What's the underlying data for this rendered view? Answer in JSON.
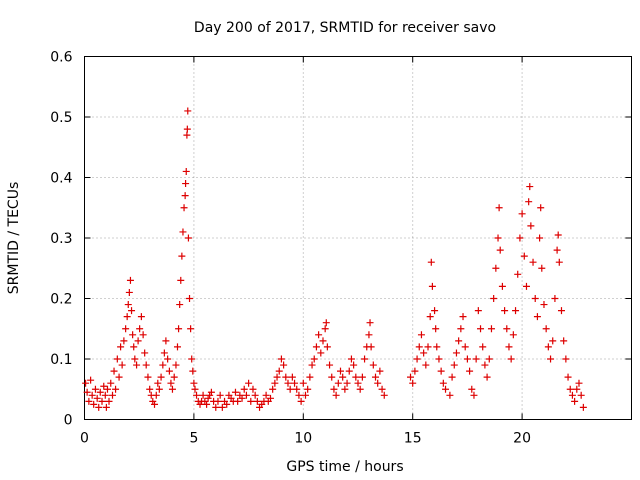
{
  "chart_data": {
    "type": "scatter",
    "title": "Day 200 of 2017, SRMTID for receiver savo",
    "xlabel": "GPS time / hours",
    "ylabel": "SRMTID / TECUs",
    "xlim": [
      0,
      25
    ],
    "ylim": [
      0,
      0.6
    ],
    "xticks": [
      0,
      5,
      10,
      15,
      20
    ],
    "xtick_labels": [
      "0",
      "5",
      "10",
      "15",
      "20"
    ],
    "yticks": [
      0,
      0.1,
      0.2,
      0.3,
      0.4,
      0.5,
      0.6
    ],
    "ytick_labels": [
      "0",
      "0.1",
      "0.2",
      "0.3",
      "0.4",
      "0.5",
      "0.6"
    ],
    "grid": true,
    "marker": "+",
    "color": "#dd0000",
    "series": [
      {
        "name": "SRMTID",
        "points": [
          [
            0.05,
            0.06
          ],
          [
            0.12,
            0.045
          ],
          [
            0.2,
            0.03
          ],
          [
            0.28,
            0.065
          ],
          [
            0.35,
            0.04
          ],
          [
            0.42,
            0.025
          ],
          [
            0.5,
            0.05
          ],
          [
            0.58,
            0.035
          ],
          [
            0.65,
            0.02
          ],
          [
            0.72,
            0.045
          ],
          [
            0.8,
            0.03
          ],
          [
            0.88,
            0.055
          ],
          [
            0.95,
            0.04
          ],
          [
            1.0,
            0.02
          ],
          [
            1.05,
            0.05
          ],
          [
            1.12,
            0.03
          ],
          [
            1.2,
            0.06
          ],
          [
            1.28,
            0.04
          ],
          [
            1.35,
            0.08
          ],
          [
            1.42,
            0.05
          ],
          [
            1.5,
            0.1
          ],
          [
            1.58,
            0.07
          ],
          [
            1.65,
            0.12
          ],
          [
            1.72,
            0.09
          ],
          [
            1.8,
            0.13
          ],
          [
            1.88,
            0.15
          ],
          [
            1.95,
            0.17
          ],
          [
            2.0,
            0.19
          ],
          [
            2.05,
            0.21
          ],
          [
            2.1,
            0.23
          ],
          [
            2.15,
            0.18
          ],
          [
            2.2,
            0.14
          ],
          [
            2.25,
            0.12
          ],
          [
            2.3,
            0.1
          ],
          [
            2.38,
            0.09
          ],
          [
            2.45,
            0.13
          ],
          [
            2.52,
            0.15
          ],
          [
            2.6,
            0.17
          ],
          [
            2.68,
            0.14
          ],
          [
            2.75,
            0.11
          ],
          [
            2.82,
            0.09
          ],
          [
            2.9,
            0.07
          ],
          [
            2.98,
            0.05
          ],
          [
            3.05,
            0.04
          ],
          [
            3.12,
            0.03
          ],
          [
            3.2,
            0.025
          ],
          [
            3.28,
            0.04
          ],
          [
            3.35,
            0.06
          ],
          [
            3.42,
            0.05
          ],
          [
            3.5,
            0.07
          ],
          [
            3.58,
            0.09
          ],
          [
            3.65,
            0.11
          ],
          [
            3.72,
            0.13
          ],
          [
            3.8,
            0.1
          ],
          [
            3.88,
            0.08
          ],
          [
            3.95,
            0.06
          ],
          [
            4.02,
            0.05
          ],
          [
            4.1,
            0.07
          ],
          [
            4.18,
            0.09
          ],
          [
            4.25,
            0.12
          ],
          [
            4.3,
            0.15
          ],
          [
            4.35,
            0.19
          ],
          [
            4.4,
            0.23
          ],
          [
            4.45,
            0.27
          ],
          [
            4.5,
            0.31
          ],
          [
            4.55,
            0.35
          ],
          [
            4.6,
            0.37
          ],
          [
            4.62,
            0.39
          ],
          [
            4.65,
            0.41
          ],
          [
            4.68,
            0.47
          ],
          [
            4.7,
            0.48
          ],
          [
            4.72,
            0.51
          ],
          [
            4.75,
            0.3
          ],
          [
            4.8,
            0.2
          ],
          [
            4.85,
            0.15
          ],
          [
            4.9,
            0.1
          ],
          [
            4.95,
            0.08
          ],
          [
            5.0,
            0.06
          ],
          [
            5.05,
            0.05
          ],
          [
            5.12,
            0.04
          ],
          [
            5.2,
            0.03
          ],
          [
            5.28,
            0.025
          ],
          [
            5.35,
            0.03
          ],
          [
            5.42,
            0.04
          ],
          [
            5.5,
            0.03
          ],
          [
            5.58,
            0.025
          ],
          [
            5.65,
            0.035
          ],
          [
            5.72,
            0.04
          ],
          [
            5.8,
            0.045
          ],
          [
            5.9,
            0.03
          ],
          [
            6.0,
            0.02
          ],
          [
            6.1,
            0.03
          ],
          [
            6.2,
            0.04
          ],
          [
            6.3,
            0.02
          ],
          [
            6.4,
            0.03
          ],
          [
            6.5,
            0.025
          ],
          [
            6.6,
            0.04
          ],
          [
            6.7,
            0.035
          ],
          [
            6.8,
            0.03
          ],
          [
            6.9,
            0.045
          ],
          [
            7.0,
            0.03
          ],
          [
            7.1,
            0.04
          ],
          [
            7.2,
            0.035
          ],
          [
            7.3,
            0.05
          ],
          [
            7.4,
            0.04
          ],
          [
            7.5,
            0.06
          ],
          [
            7.6,
            0.03
          ],
          [
            7.7,
            0.05
          ],
          [
            7.8,
            0.04
          ],
          [
            7.9,
            0.03
          ],
          [
            8.0,
            0.02
          ],
          [
            8.1,
            0.025
          ],
          [
            8.2,
            0.03
          ],
          [
            8.3,
            0.04
          ],
          [
            8.4,
            0.03
          ],
          [
            8.5,
            0.035
          ],
          [
            8.6,
            0.05
          ],
          [
            8.7,
            0.06
          ],
          [
            8.8,
            0.07
          ],
          [
            8.9,
            0.08
          ],
          [
            9.0,
            0.1
          ],
          [
            9.1,
            0.09
          ],
          [
            9.2,
            0.07
          ],
          [
            9.3,
            0.06
          ],
          [
            9.4,
            0.05
          ],
          [
            9.5,
            0.07
          ],
          [
            9.6,
            0.06
          ],
          [
            9.7,
            0.05
          ],
          [
            9.8,
            0.04
          ],
          [
            9.9,
            0.03
          ],
          [
            10.0,
            0.06
          ],
          [
            10.1,
            0.04
          ],
          [
            10.2,
            0.05
          ],
          [
            10.3,
            0.07
          ],
          [
            10.4,
            0.09
          ],
          [
            10.5,
            0.1
          ],
          [
            10.6,
            0.12
          ],
          [
            10.7,
            0.14
          ],
          [
            10.8,
            0.11
          ],
          [
            10.9,
            0.13
          ],
          [
            11.0,
            0.15
          ],
          [
            11.05,
            0.16
          ],
          [
            11.1,
            0.12
          ],
          [
            11.2,
            0.09
          ],
          [
            11.3,
            0.07
          ],
          [
            11.4,
            0.05
          ],
          [
            11.5,
            0.04
          ],
          [
            11.6,
            0.06
          ],
          [
            11.7,
            0.08
          ],
          [
            11.8,
            0.07
          ],
          [
            11.9,
            0.05
          ],
          [
            12.0,
            0.06
          ],
          [
            12.1,
            0.08
          ],
          [
            12.2,
            0.1
          ],
          [
            12.3,
            0.09
          ],
          [
            12.4,
            0.07
          ],
          [
            12.5,
            0.06
          ],
          [
            12.6,
            0.05
          ],
          [
            12.7,
            0.07
          ],
          [
            12.8,
            0.1
          ],
          [
            12.9,
            0.12
          ],
          [
            13.0,
            0.14
          ],
          [
            13.05,
            0.16
          ],
          [
            13.1,
            0.12
          ],
          [
            13.2,
            0.09
          ],
          [
            13.3,
            0.07
          ],
          [
            13.4,
            0.06
          ],
          [
            13.5,
            0.08
          ],
          [
            13.6,
            0.05
          ],
          [
            13.7,
            0.04
          ],
          [
            14.9,
            0.07
          ],
          [
            15.0,
            0.06
          ],
          [
            15.1,
            0.08
          ],
          [
            15.2,
            0.1
          ],
          [
            15.3,
            0.12
          ],
          [
            15.4,
            0.14
          ],
          [
            15.5,
            0.11
          ],
          [
            15.6,
            0.09
          ],
          [
            15.7,
            0.12
          ],
          [
            15.8,
            0.17
          ],
          [
            15.85,
            0.26
          ],
          [
            15.9,
            0.22
          ],
          [
            16.0,
            0.18
          ],
          [
            16.05,
            0.15
          ],
          [
            16.1,
            0.12
          ],
          [
            16.2,
            0.1
          ],
          [
            16.3,
            0.08
          ],
          [
            16.4,
            0.06
          ],
          [
            16.5,
            0.05
          ],
          [
            16.7,
            0.04
          ],
          [
            16.8,
            0.07
          ],
          [
            16.9,
            0.09
          ],
          [
            17.0,
            0.11
          ],
          [
            17.1,
            0.13
          ],
          [
            17.2,
            0.15
          ],
          [
            17.3,
            0.17
          ],
          [
            17.4,
            0.12
          ],
          [
            17.5,
            0.1
          ],
          [
            17.6,
            0.08
          ],
          [
            17.7,
            0.05
          ],
          [
            17.8,
            0.04
          ],
          [
            17.9,
            0.1
          ],
          [
            18.0,
            0.18
          ],
          [
            18.1,
            0.15
          ],
          [
            18.2,
            0.12
          ],
          [
            18.3,
            0.09
          ],
          [
            18.4,
            0.07
          ],
          [
            18.5,
            0.1
          ],
          [
            18.6,
            0.15
          ],
          [
            18.7,
            0.2
          ],
          [
            18.8,
            0.25
          ],
          [
            18.9,
            0.3
          ],
          [
            18.95,
            0.35
          ],
          [
            19.0,
            0.28
          ],
          [
            19.1,
            0.22
          ],
          [
            19.2,
            0.18
          ],
          [
            19.3,
            0.15
          ],
          [
            19.4,
            0.12
          ],
          [
            19.5,
            0.1
          ],
          [
            19.6,
            0.14
          ],
          [
            19.7,
            0.18
          ],
          [
            19.8,
            0.24
          ],
          [
            19.9,
            0.3
          ],
          [
            20.0,
            0.34
          ],
          [
            20.1,
            0.27
          ],
          [
            20.2,
            0.22
          ],
          [
            20.3,
            0.36
          ],
          [
            20.35,
            0.385
          ],
          [
            20.4,
            0.32
          ],
          [
            20.5,
            0.26
          ],
          [
            20.6,
            0.2
          ],
          [
            20.7,
            0.17
          ],
          [
            20.8,
            0.3
          ],
          [
            20.85,
            0.35
          ],
          [
            20.9,
            0.25
          ],
          [
            21.0,
            0.19
          ],
          [
            21.1,
            0.15
          ],
          [
            21.2,
            0.12
          ],
          [
            21.3,
            0.1
          ],
          [
            21.4,
            0.13
          ],
          [
            21.5,
            0.2
          ],
          [
            21.6,
            0.28
          ],
          [
            21.65,
            0.305
          ],
          [
            21.7,
            0.26
          ],
          [
            21.8,
            0.18
          ],
          [
            21.9,
            0.13
          ],
          [
            22.0,
            0.1
          ],
          [
            22.1,
            0.07
          ],
          [
            22.2,
            0.05
          ],
          [
            22.3,
            0.04
          ],
          [
            22.4,
            0.03
          ],
          [
            22.5,
            0.05
          ],
          [
            22.6,
            0.06
          ],
          [
            22.7,
            0.04
          ],
          [
            22.8,
            0.02
          ]
        ]
      }
    ]
  }
}
